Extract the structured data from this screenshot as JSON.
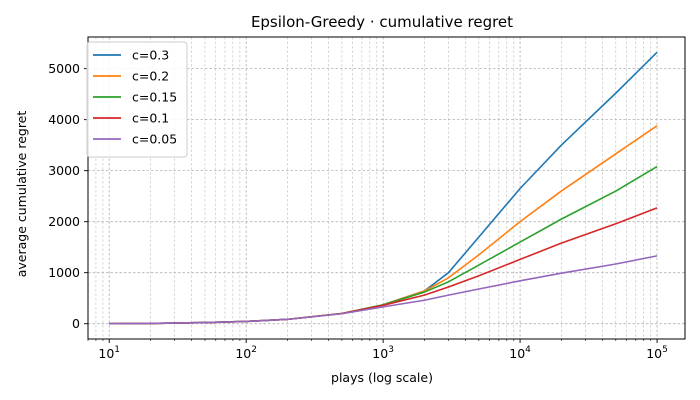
{
  "chart_data": {
    "type": "line",
    "title": "Epsilon-Greedy · cumulative regret",
    "xlabel": "plays (log scale)",
    "ylabel": "average cumulative regret",
    "x_scale": "log",
    "xlim": [
      7,
      160000
    ],
    "ylim": [
      -300,
      5620
    ],
    "x_ticks": [
      {
        "value": 10,
        "base": "10",
        "exp": "1"
      },
      {
        "value": 100,
        "base": "10",
        "exp": "2"
      },
      {
        "value": 1000,
        "base": "10",
        "exp": "3"
      },
      {
        "value": 10000,
        "base": "10",
        "exp": "4"
      },
      {
        "value": 100000,
        "base": "10",
        "exp": "5"
      }
    ],
    "y_ticks": [
      0,
      1000,
      2000,
      3000,
      4000,
      5000
    ],
    "grid": true,
    "legend_position": "upper-left",
    "x": [
      10,
      20,
      50,
      100,
      200,
      500,
      1000,
      2000,
      3000,
      5000,
      10000,
      20000,
      50000,
      100000
    ],
    "series": [
      {
        "name": "c=0.3",
        "color": "#1f77b4",
        "values": [
          0,
          5,
          22,
          45,
          85,
          200,
          370,
          640,
          1000,
          1700,
          2650,
          3500,
          4520,
          5320
        ]
      },
      {
        "name": "c=0.2",
        "color": "#ff7f0e",
        "values": [
          0,
          5,
          22,
          45,
          85,
          200,
          370,
          640,
          900,
          1350,
          2000,
          2600,
          3330,
          3880
        ]
      },
      {
        "name": "c=0.15",
        "color": "#2ca02c",
        "values": [
          0,
          5,
          22,
          45,
          85,
          200,
          370,
          620,
          820,
          1150,
          1600,
          2050,
          2600,
          3080
        ]
      },
      {
        "name": "c=0.1",
        "color": "#d62728",
        "values": [
          0,
          5,
          22,
          45,
          85,
          200,
          360,
          560,
          720,
          940,
          1260,
          1580,
          1960,
          2270
        ]
      },
      {
        "name": "c=0.05",
        "color": "#9467bd",
        "values": [
          0,
          5,
          22,
          45,
          85,
          195,
          330,
          460,
          560,
          680,
          840,
          990,
          1170,
          1330
        ]
      }
    ]
  }
}
